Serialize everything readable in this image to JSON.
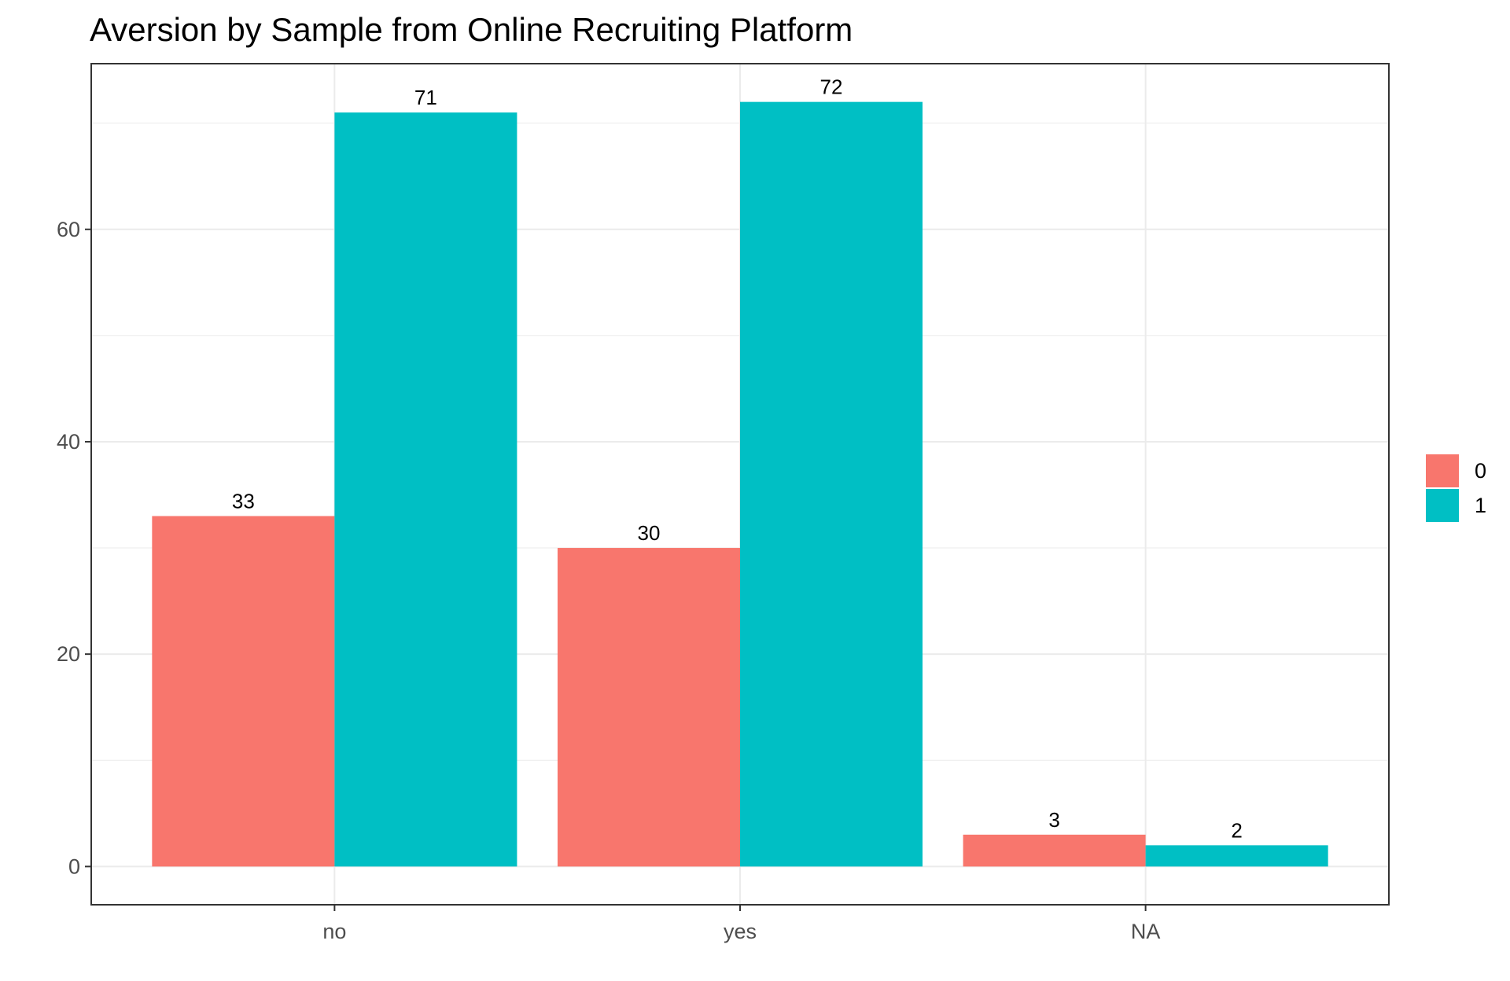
{
  "chart_data": {
    "type": "bar",
    "title": "Aversion by Sample from Online Recruiting Platform",
    "xlabel": "",
    "ylabel": "",
    "categories": [
      "no",
      "yes",
      "NA"
    ],
    "series": [
      {
        "name": "0",
        "color": "#F8766D",
        "values": [
          33,
          30,
          3
        ]
      },
      {
        "name": "1",
        "color": "#00BFC4",
        "values": [
          71,
          72,
          2
        ]
      }
    ],
    "yticks": [
      0,
      20,
      40,
      60
    ],
    "ylim": [
      -3.6,
      75.6
    ],
    "grid": true,
    "legend_position": "right",
    "bar_labels": true
  }
}
